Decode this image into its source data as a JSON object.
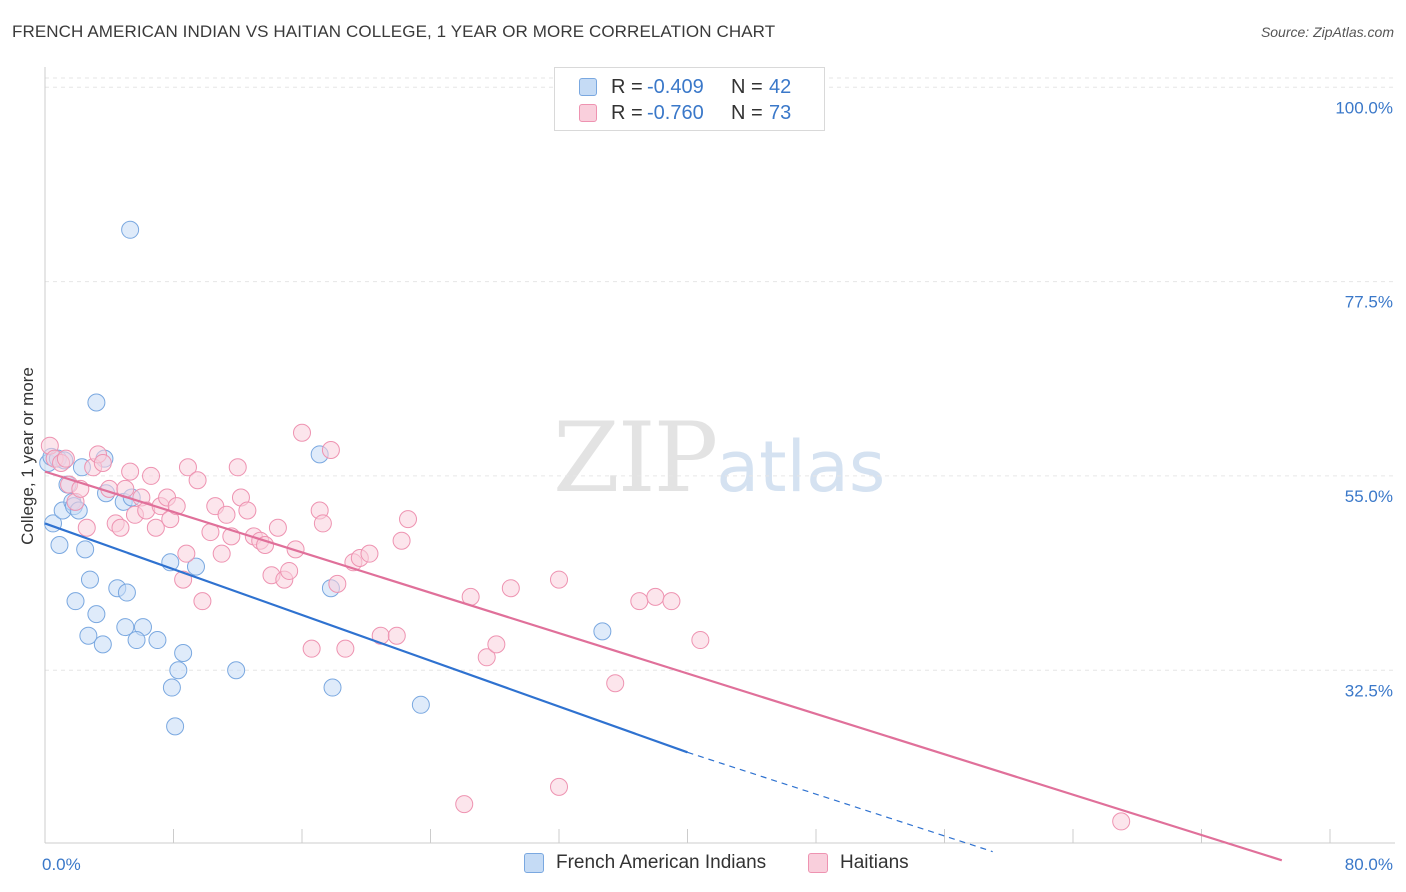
{
  "header": {
    "title": "FRENCH AMERICAN INDIAN VS HAITIAN COLLEGE, 1 YEAR OR MORE CORRELATION CHART",
    "source": "Source: ZipAtlas.com"
  },
  "watermark": {
    "zip": "ZIP",
    "atlas": "atlas"
  },
  "legend": {
    "rows": [
      {
        "r_label": "R =",
        "r_value": "-0.409",
        "n_label": "N =",
        "n_value": "42"
      },
      {
        "r_label": "R =",
        "r_value": "-0.760",
        "n_label": "N =",
        "n_value": "73"
      }
    ]
  },
  "colors": {
    "blue_fill": "#c5dbf5",
    "blue_edge": "#7aa8e0",
    "blue_line": "#2f72d0",
    "pink_fill": "#f9cfdc",
    "pink_edge": "#ee93b1",
    "pink_line": "#e0709a",
    "tick_label": "#3a78c9",
    "grid": "#e6e6e6"
  },
  "chart_data": {
    "type": "scatter",
    "title": "FRENCH AMERICAN INDIAN VS HAITIAN COLLEGE, 1 YEAR OR MORE CORRELATION CHART",
    "xlabel": "",
    "ylabel": "College, 1 year or more",
    "xlim": [
      0,
      80
    ],
    "ylim": [
      12.5,
      102
    ],
    "x_tick_labels": [
      "0.0%",
      "80.0%"
    ],
    "y_ticks": [
      32.5,
      55.0,
      77.5,
      100.0
    ],
    "y_tick_labels": [
      "32.5%",
      "55.0%",
      "77.5%",
      "100.0%"
    ],
    "grid": "horizontal dashed",
    "legend_position": "top-center and bottom",
    "series": [
      {
        "name": "French American Indians",
        "points": [
          [
            0.2,
            56.5
          ],
          [
            0.4,
            57.2
          ],
          [
            0.8,
            57.0
          ],
          [
            1.2,
            56.8
          ],
          [
            0.5,
            49.5
          ],
          [
            1.1,
            51.0
          ],
          [
            1.4,
            54.0
          ],
          [
            1.7,
            52.0
          ],
          [
            1.8,
            51.5
          ],
          [
            2.1,
            51.0
          ],
          [
            0.9,
            47.0
          ],
          [
            2.5,
            46.5
          ],
          [
            2.8,
            43.0
          ],
          [
            3.7,
            57.0
          ],
          [
            3.8,
            53.0
          ],
          [
            4.5,
            42.0
          ],
          [
            5.1,
            41.5
          ],
          [
            1.9,
            40.5
          ],
          [
            3.2,
            39.0
          ],
          [
            2.7,
            36.5
          ],
          [
            3.6,
            35.5
          ],
          [
            5.0,
            37.5
          ],
          [
            6.1,
            37.5
          ],
          [
            5.7,
            36.0
          ],
          [
            7.0,
            36.0
          ],
          [
            7.8,
            45.0
          ],
          [
            9.4,
            44.5
          ],
          [
            4.9,
            52.0
          ],
          [
            5.4,
            52.5
          ],
          [
            3.2,
            63.5
          ],
          [
            5.3,
            83.5
          ],
          [
            8.6,
            34.5
          ],
          [
            8.3,
            32.5
          ],
          [
            7.9,
            30.5
          ],
          [
            8.1,
            26.0
          ],
          [
            11.9,
            32.5
          ],
          [
            17.1,
            57.5
          ],
          [
            17.8,
            42.0
          ],
          [
            17.9,
            30.5
          ],
          [
            23.4,
            28.5
          ],
          [
            34.7,
            37.0
          ],
          [
            2.3,
            56.0
          ]
        ]
      },
      {
        "name": "Haitians",
        "points": [
          [
            0.3,
            58.5
          ],
          [
            0.6,
            57.0
          ],
          [
            1.0,
            56.5
          ],
          [
            1.3,
            57.0
          ],
          [
            1.5,
            54.0
          ],
          [
            1.9,
            52.0
          ],
          [
            2.2,
            53.5
          ],
          [
            2.6,
            49.0
          ],
          [
            3.0,
            56.0
          ],
          [
            3.3,
            57.5
          ],
          [
            3.6,
            56.5
          ],
          [
            4.0,
            53.5
          ],
          [
            4.4,
            49.5
          ],
          [
            4.7,
            49.0
          ],
          [
            5.0,
            53.5
          ],
          [
            5.3,
            55.5
          ],
          [
            5.6,
            50.5
          ],
          [
            6.0,
            52.5
          ],
          [
            6.3,
            51.0
          ],
          [
            6.6,
            55.0
          ],
          [
            6.9,
            49.0
          ],
          [
            7.2,
            51.5
          ],
          [
            7.6,
            52.5
          ],
          [
            7.8,
            50.0
          ],
          [
            8.2,
            51.5
          ],
          [
            8.6,
            43.0
          ],
          [
            8.8,
            46.0
          ],
          [
            8.9,
            56.0
          ],
          [
            9.5,
            54.5
          ],
          [
            9.8,
            40.5
          ],
          [
            10.3,
            48.5
          ],
          [
            10.6,
            51.5
          ],
          [
            11.0,
            46.0
          ],
          [
            11.3,
            50.5
          ],
          [
            11.6,
            48.0
          ],
          [
            12.0,
            56.0
          ],
          [
            12.2,
            52.5
          ],
          [
            12.6,
            51.0
          ],
          [
            13.0,
            48.0
          ],
          [
            13.4,
            47.5
          ],
          [
            13.7,
            47.0
          ],
          [
            14.1,
            43.5
          ],
          [
            14.5,
            49.0
          ],
          [
            14.9,
            43.0
          ],
          [
            15.2,
            44.0
          ],
          [
            15.6,
            46.5
          ],
          [
            16.0,
            60.0
          ],
          [
            16.6,
            35.0
          ],
          [
            17.1,
            51.0
          ],
          [
            17.3,
            49.5
          ],
          [
            17.8,
            58.0
          ],
          [
            18.2,
            42.5
          ],
          [
            18.7,
            35.0
          ],
          [
            19.2,
            45.0
          ],
          [
            19.6,
            45.5
          ],
          [
            20.2,
            46.0
          ],
          [
            20.9,
            36.5
          ],
          [
            21.9,
            36.5
          ],
          [
            22.2,
            47.5
          ],
          [
            22.6,
            50.0
          ],
          [
            26.5,
            41.0
          ],
          [
            27.5,
            34.0
          ],
          [
            28.1,
            35.5
          ],
          [
            29.0,
            42.0
          ],
          [
            32.0,
            43.0
          ],
          [
            37.0,
            40.5
          ],
          [
            38.0,
            41.0
          ],
          [
            39.0,
            40.5
          ],
          [
            40.8,
            36.0
          ],
          [
            35.5,
            31.0
          ],
          [
            26.1,
            17.0
          ],
          [
            32.0,
            19.0
          ],
          [
            67.0,
            15.0
          ]
        ]
      }
    ],
    "trend_lines": [
      {
        "series": "French American Indians",
        "x": [
          0,
          40
        ],
        "y": [
          49.5,
          23.0
        ],
        "dashed_extension_to": [
          59,
          11.5
        ]
      },
      {
        "series": "Haitians",
        "x": [
          0,
          77
        ],
        "y": [
          55.5,
          10.5
        ]
      }
    ]
  },
  "bottom_legend": {
    "items": [
      "French American Indians",
      "Haitians"
    ]
  }
}
